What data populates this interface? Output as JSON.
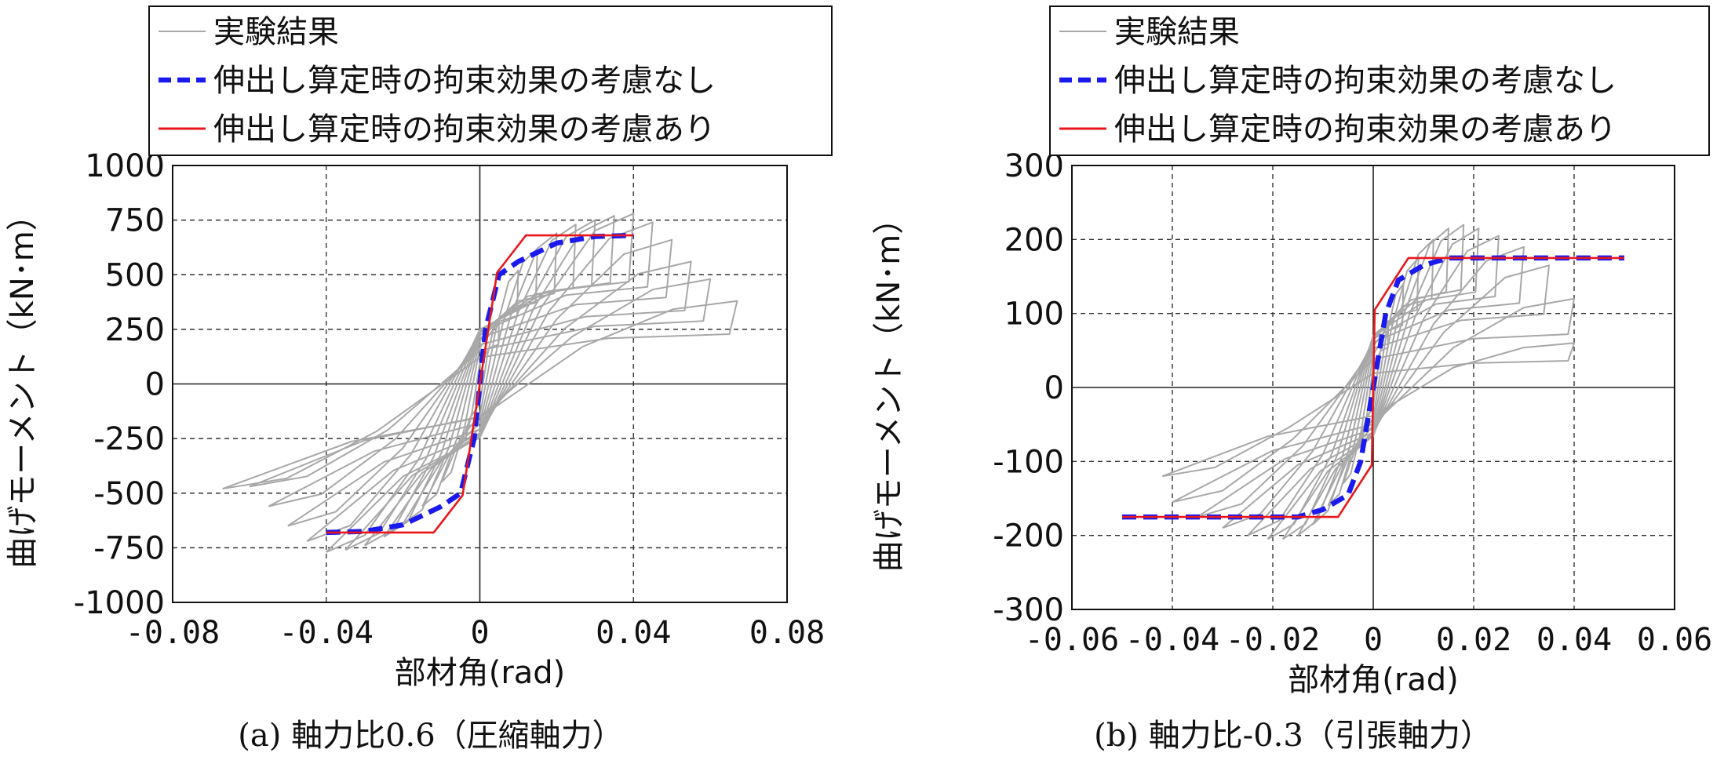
{
  "chart_data": [
    {
      "type": "line",
      "caption": "(a)  軸力比0.6（圧縮軸力）",
      "xlabel": "部材角(rad)",
      "ylabel": "曲げモーメント（kN･m）",
      "xlim": [
        -0.08,
        0.08
      ],
      "ylim": [
        -1000,
        1000
      ],
      "xticks": [
        -0.08,
        -0.04,
        0,
        0.04,
        0.08
      ],
      "xtick_labels": [
        "-0.08",
        "-0.04",
        "0",
        "0.04",
        "0.08"
      ],
      "yticks": [
        -1000,
        -750,
        -500,
        -250,
        0,
        250,
        500,
        750,
        1000
      ],
      "ytick_labels": [
        "-1000",
        "-750",
        "-500",
        "-250",
        "0",
        "250",
        "500",
        "750",
        "1000"
      ],
      "grid": true,
      "legend_position": "top-left",
      "series": [
        {
          "name": "実験結果",
          "color": "#a8a8a8",
          "style": "hysteresis",
          "cycles": [
            {
              "min": [
                -0.005,
                -280
              ],
              "max": [
                0.005,
                300
              ]
            },
            {
              "min": [
                -0.01,
                -450
              ],
              "max": [
                0.01,
                520
              ]
            },
            {
              "min": [
                -0.015,
                -560
              ],
              "max": [
                0.015,
                620
              ]
            },
            {
              "min": [
                -0.02,
                -640
              ],
              "max": [
                0.02,
                690
              ]
            },
            {
              "min": [
                -0.025,
                -700
              ],
              "max": [
                0.025,
                730
              ]
            },
            {
              "min": [
                -0.03,
                -740
              ],
              "max": [
                0.03,
                750
              ]
            },
            {
              "min": [
                -0.035,
                -760
              ],
              "max": [
                0.035,
                770
              ]
            },
            {
              "min": [
                -0.04,
                -770
              ],
              "max": [
                0.04,
                780
              ]
            },
            {
              "min": [
                -0.045,
                -720
              ],
              "max": [
                0.045,
                740
              ]
            },
            {
              "min": [
                -0.05,
                -650
              ],
              "max": [
                0.05,
                660
              ]
            },
            {
              "min": [
                -0.055,
                -560
              ],
              "max": [
                0.055,
                560
              ]
            },
            {
              "min": [
                -0.06,
                -470
              ],
              "max": [
                0.06,
                480
              ]
            },
            {
              "min": [
                -0.067,
                -480
              ],
              "max": [
                0.067,
                380
              ]
            }
          ]
        },
        {
          "name": "伸出し算定時の拘束効果の考慮なし",
          "color": "#1a1aee",
          "style": "dashed",
          "points": [
            [
              -0.04,
              -680
            ],
            [
              -0.03,
              -675
            ],
            [
              -0.02,
              -645
            ],
            [
              -0.01,
              -560
            ],
            [
              -0.005,
              -500
            ],
            [
              -0.0015,
              -250
            ],
            [
              0,
              0
            ],
            [
              0.0015,
              250
            ],
            [
              0.005,
              500
            ],
            [
              0.01,
              560
            ],
            [
              0.02,
              645
            ],
            [
              0.03,
              675
            ],
            [
              0.04,
              680
            ]
          ]
        },
        {
          "name": "伸出し算定時の拘束効果の考慮あり",
          "color": "#e8171b",
          "style": "solid",
          "points": [
            [
              -0.04,
              -680
            ],
            [
              -0.012,
              -680
            ],
            [
              -0.0045,
              -510
            ],
            [
              0,
              0
            ],
            [
              0.0045,
              510
            ],
            [
              0.012,
              680
            ],
            [
              0.04,
              680
            ]
          ]
        }
      ]
    },
    {
      "type": "line",
      "caption": "(b) 軸力比-0.3（引張軸力）",
      "xlabel": "部材角(rad)",
      "ylabel": "曲げモーメント（kN･m）",
      "xlim": [
        -0.06,
        0.06
      ],
      "ylim": [
        -300,
        300
      ],
      "xticks": [
        -0.06,
        -0.04,
        -0.02,
        0,
        0.02,
        0.04,
        0.06
      ],
      "xtick_labels": [
        "-0.06",
        "-0.04",
        "-0.02",
        "0",
        "0.02",
        "0.04",
        "0.06"
      ],
      "yticks": [
        -300,
        -200,
        -100,
        0,
        100,
        200,
        300
      ],
      "ytick_labels": [
        "-300",
        "-200",
        "-100",
        "0",
        "100",
        "200",
        "300"
      ],
      "grid": true,
      "legend_position": "top-left",
      "series": [
        {
          "name": "実験結果",
          "color": "#a8a8a8",
          "style": "hysteresis",
          "cycles": [
            {
              "min": [
                -0.003,
                -80
              ],
              "max": [
                0.003,
                90
              ]
            },
            {
              "min": [
                -0.006,
                -130
              ],
              "max": [
                0.006,
                140
              ]
            },
            {
              "min": [
                -0.009,
                -160
              ],
              "max": [
                0.009,
                175
              ]
            },
            {
              "min": [
                -0.012,
                -185
              ],
              "max": [
                0.012,
                200
              ]
            },
            {
              "min": [
                -0.015,
                -200
              ],
              "max": [
                0.015,
                215
              ]
            },
            {
              "min": [
                -0.018,
                -205
              ],
              "max": [
                0.018,
                220
              ]
            },
            {
              "min": [
                -0.021,
                -205
              ],
              "max": [
                0.021,
                215
              ]
            },
            {
              "min": [
                -0.025,
                -200
              ],
              "max": [
                0.025,
                205
              ]
            },
            {
              "min": [
                -0.03,
                -190
              ],
              "max": [
                0.03,
                190
              ]
            },
            {
              "min": [
                -0.035,
                -175
              ],
              "max": [
                0.035,
                165
              ]
            },
            {
              "min": [
                -0.04,
                -155
              ],
              "max": [
                0.04,
                120
              ]
            },
            {
              "min": [
                -0.042,
                -120
              ],
              "max": [
                0.04,
                60
              ]
            }
          ]
        },
        {
          "name": "伸出し算定時の拘束効果の考慮なし",
          "color": "#1a1aee",
          "style": "dashed",
          "points": [
            [
              -0.05,
              -175
            ],
            [
              -0.015,
              -175
            ],
            [
              -0.01,
              -165
            ],
            [
              -0.005,
              -145
            ],
            [
              -0.0025,
              -100
            ],
            [
              0,
              0
            ],
            [
              0.0025,
              100
            ],
            [
              0.005,
              145
            ],
            [
              0.01,
              165
            ],
            [
              0.015,
              175
            ],
            [
              0.05,
              175
            ]
          ]
        },
        {
          "name": "伸出し算定時の拘束効果の考慮あり",
          "color": "#e8171b",
          "style": "solid",
          "points": [
            [
              -0.05,
              -175
            ],
            [
              -0.007,
              -175
            ],
            [
              -0.0003,
              -105
            ],
            [
              0.0003,
              105
            ],
            [
              0.007,
              175
            ],
            [
              0.05,
              175
            ]
          ]
        }
      ]
    }
  ]
}
